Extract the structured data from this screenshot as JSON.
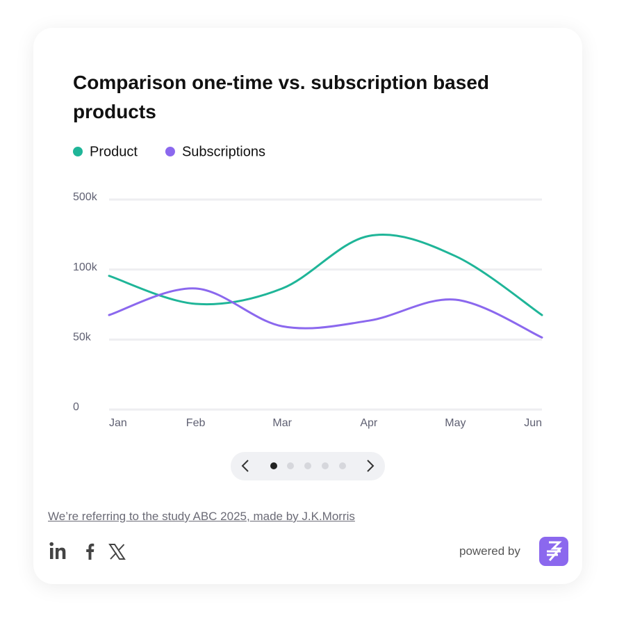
{
  "chart_data": {
    "type": "line",
    "title": "Comparison one-time vs. subscription based products",
    "categories": [
      "Jan",
      "Feb",
      "Mar",
      "Apr",
      "May",
      "Jun"
    ],
    "series": [
      {
        "name": "Product",
        "color": "#1fb598",
        "values": [
          94000,
          74000,
          85000,
          280000,
          165000,
          66000
        ]
      },
      {
        "name": "Subscriptions",
        "color": "#8b68ee",
        "values": [
          66000,
          85000,
          58000,
          62000,
          77000,
          50000
        ]
      }
    ],
    "ylim": [
      0,
      500000
    ],
    "yticks": [
      0,
      {
        "value": 50000,
        "label": "50k"
      },
      {
        "value": 100000,
        "label": "100k"
      },
      {
        "value": 500000,
        "label": "500k"
      }
    ],
    "grid": true
  },
  "footer": {
    "source": "We’re referring to the study ABC 2025, made by J.K.Morris",
    "powered_by": "powered by"
  }
}
